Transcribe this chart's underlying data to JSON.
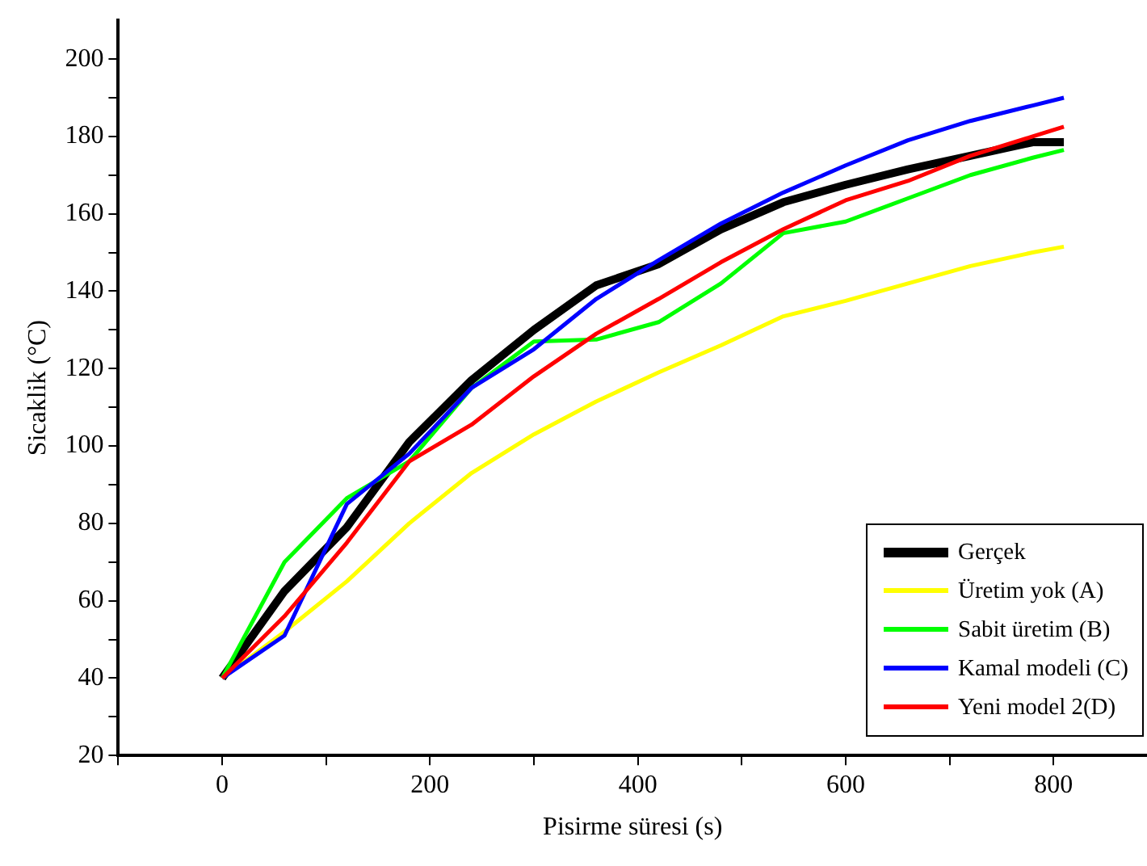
{
  "chart_data": {
    "type": "line",
    "xlabel": "Pisirme süresi (s)",
    "ylabel": "Sicaklik (°C)",
    "x": [
      0,
      60,
      120,
      180,
      240,
      300,
      360,
      420,
      480,
      540,
      600,
      660,
      720,
      780,
      810
    ],
    "xlim": [
      -100,
      890
    ],
    "xticks": [
      {
        "value": -100,
        "label": null
      },
      0,
      {
        "value": 100,
        "label": null
      },
      200,
      {
        "value": 300,
        "label": null
      },
      400,
      {
        "value": 500,
        "label": null
      },
      600,
      {
        "value": 700,
        "label": null
      },
      800
    ],
    "ylim": [
      20,
      210
    ],
    "yticks": [
      20,
      {
        "value": 30,
        "label": null
      },
      40,
      {
        "value": 50,
        "label": null
      },
      60,
      {
        "value": 70,
        "label": null
      },
      80,
      {
        "value": 90,
        "label": null
      },
      100,
      {
        "value": 110,
        "label": null
      },
      120,
      {
        "value": 130,
        "label": null
      },
      140,
      {
        "value": 150,
        "label": null
      },
      160,
      {
        "value": 170,
        "label": null
      },
      180,
      {
        "value": 190,
        "label": null
      },
      200
    ],
    "grid": false,
    "legend": "bottom right",
    "marker": "none",
    "line_style": "solid",
    "series": [
      {
        "name": "Gerçek",
        "color": "#000000",
        "values": [
          40,
          62.5,
          79,
          101,
          117,
          130,
          141.5,
          147,
          156,
          163,
          167.5,
          171.5,
          175,
          178.5,
          178.5
        ]
      },
      {
        "name": "Üretim yok (A)",
        "color": "#ffff00",
        "values": [
          40,
          52,
          65,
          80,
          93,
          103,
          111.5,
          119,
          126,
          133.5,
          137.5,
          142,
          146.5,
          150,
          151.5
        ]
      },
      {
        "name": "Sabit üretim (B)",
        "color": "#00ff00",
        "values": [
          40,
          70,
          86.5,
          96,
          115,
          127,
          127.5,
          132,
          142,
          155,
          158,
          164,
          170,
          174.5,
          176.5
        ]
      },
      {
        "name": "Kamal modeli (C)",
        "color": "#0000ff",
        "values": [
          40,
          51,
          85,
          98,
          115,
          125,
          138,
          148,
          157.5,
          165.5,
          172.5,
          179,
          184,
          188,
          190
        ]
      },
      {
        "name": "Yeni model 2(D)",
        "color": "#ff0000",
        "values": [
          40,
          56,
          75,
          96,
          105.5,
          118,
          129,
          138,
          147.5,
          156,
          163.5,
          168.5,
          175,
          180,
          182.5
        ]
      }
    ]
  }
}
